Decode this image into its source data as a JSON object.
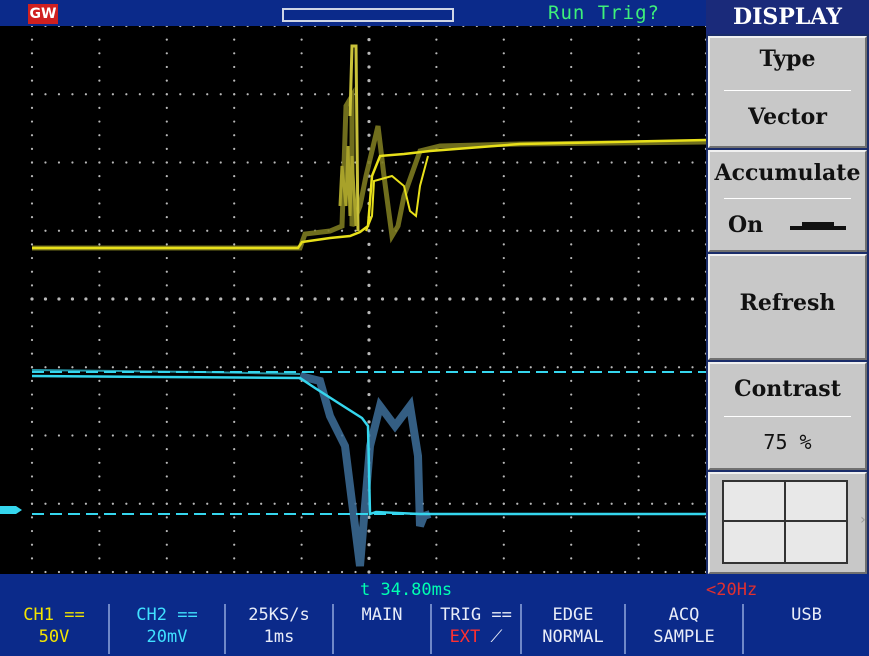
{
  "header": {
    "logo_text": "GW",
    "run_status": "Run Trig?"
  },
  "menu": {
    "title": "DISPLAY",
    "type_label": "Type",
    "type_value": "Vector",
    "accumulate_label": "Accumulate",
    "accumulate_value": "On",
    "refresh_label": "Refresh",
    "contrast_label": "Contrast",
    "contrast_value": "75 %",
    "grid_icon": "grid-full-icon"
  },
  "readouts": {
    "timebase_cursor": "t 34.80ms",
    "trigger_freq": "<20Hz"
  },
  "status": {
    "ch1_line1": "CH1 ==",
    "ch1_line2": "50V",
    "ch2_line1": "CH2 ==",
    "ch2_line2": "20mV",
    "rate_line1": "25KS/s",
    "rate_line2": "1ms",
    "main": "MAIN",
    "trig_line1": "TRIG ==",
    "trig_line2_a": "EXT",
    "trig_line2_b": "⟋",
    "edge_line1": "EDGE",
    "edge_line2": "NORMAL",
    "acq_line1": "ACQ",
    "acq_line2": "SAMPLE",
    "usb": "USB"
  },
  "colors": {
    "ch1": "#e8e01a",
    "ch2": "#35d6ee",
    "frame": "#0b2a8a"
  }
}
